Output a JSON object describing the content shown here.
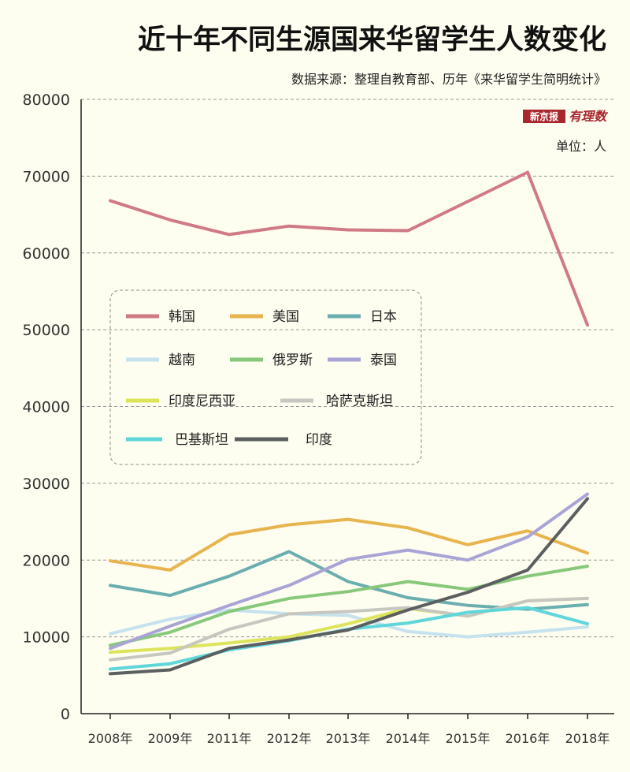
{
  "chart_data": {
    "type": "line",
    "title": "近十年不同生源国来华留学生人数变化",
    "subtitle": "数据来源：整理自教育部、历年《来华留学生简明统计》",
    "unit": "单位：人",
    "logo": {
      "brand": "新京报",
      "tag": "有理数"
    },
    "categories": [
      "2008年",
      "2009年",
      "2011年",
      "2012年",
      "2013年",
      "2014年",
      "2015年",
      "2016年",
      "2018年"
    ],
    "ylim": [
      0,
      80000
    ],
    "yticks": [
      "0",
      "10000",
      "20000",
      "30000",
      "40000",
      "50000",
      "60000",
      "70000",
      "80000"
    ],
    "grid": true,
    "legend_position": "center-left",
    "series": [
      {
        "name": "韩国",
        "color": "#d07a86",
        "values": [
          66800,
          64300,
          62400,
          63500,
          63000,
          62900,
          66700,
          70500,
          50600
        ]
      },
      {
        "name": "美国",
        "color": "#e8b44e",
        "values": [
          19900,
          18700,
          23300,
          24600,
          25300,
          24200,
          22000,
          23800,
          20900
        ]
      },
      {
        "name": "日本",
        "color": "#6aaeb0",
        "values": [
          16700,
          15400,
          17900,
          21100,
          17200,
          15100,
          14100,
          13600,
          14200
        ]
      },
      {
        "name": "越南",
        "color": "#c5e2ee",
        "values": [
          10400,
          12300,
          13500,
          13000,
          12800,
          10700,
          10000,
          10600,
          11300
        ]
      },
      {
        "name": "俄罗斯",
        "color": "#88c87a",
        "values": [
          8900,
          10600,
          13300,
          15000,
          15900,
          17200,
          16200,
          17900,
          19200
        ]
      },
      {
        "name": "泰国",
        "color": "#a9a4d6",
        "values": [
          8500,
          11400,
          14100,
          16700,
          20100,
          21300,
          20000,
          23000,
          28600
        ]
      },
      {
        "name": "印度尼西亚",
        "color": "#dde45c",
        "values": [
          8000,
          8500,
          9200,
          10000,
          11700,
          13700,
          12700,
          14700,
          15000
        ]
      },
      {
        "name": "哈萨克斯坦",
        "color": "#c7c7c2",
        "values": [
          7000,
          7900,
          11000,
          13000,
          13300,
          13800,
          12700,
          14700,
          15000
        ]
      },
      {
        "name": "巴基斯坦",
        "color": "#5fd6da",
        "values": [
          5800,
          6500,
          8300,
          9500,
          11000,
          11800,
          13200,
          13800,
          11700
        ]
      },
      {
        "name": "印度",
        "color": "#5b5f5f",
        "values": [
          5200,
          5700,
          8500,
          9600,
          10900,
          13500,
          15800,
          18700,
          28000
        ]
      }
    ]
  }
}
